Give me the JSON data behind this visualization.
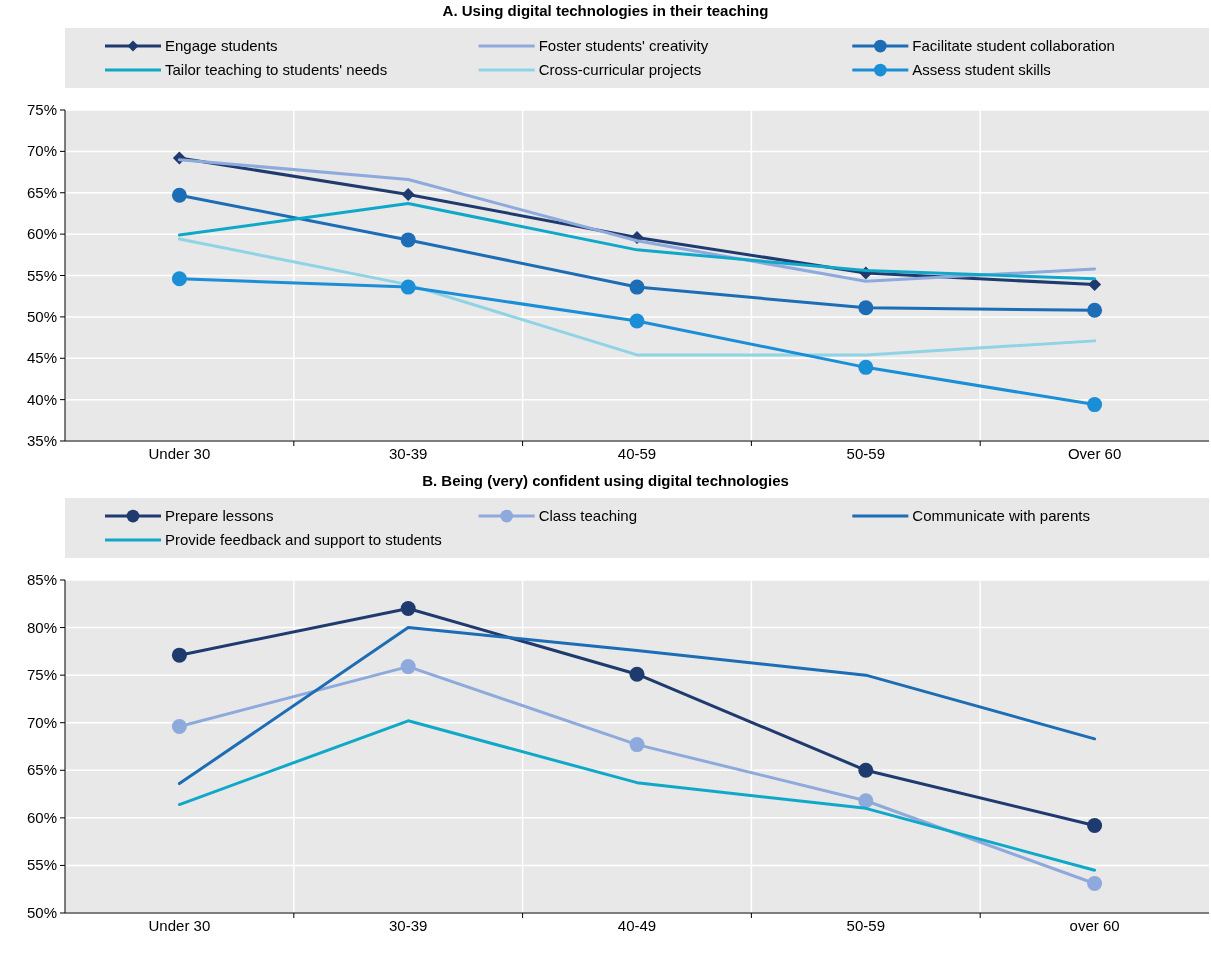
{
  "chart_data": [
    {
      "type": "line",
      "title": "A. Using digital technologies in their teaching",
      "categories": [
        "Under 30",
        "30-39",
        "40-59",
        "50-59",
        "Over 60"
      ],
      "ylim": [
        35,
        75
      ],
      "yticks": [
        {
          "value": 35,
          "label": "35%"
        },
        {
          "value": 40,
          "label": "40%"
        },
        {
          "value": 45,
          "label": "45%"
        },
        {
          "value": 50,
          "label": "50%"
        },
        {
          "value": 55,
          "label": "55%"
        },
        {
          "value": 60,
          "label": "60%"
        },
        {
          "value": 65,
          "label": "65%"
        },
        {
          "value": 70,
          "label": "70%"
        },
        {
          "value": 75,
          "label": "75%"
        }
      ],
      "grid": true,
      "legend": "top",
      "series": [
        {
          "name": "Engage students",
          "color": "#1f3a6e",
          "marker": "diamond",
          "values": [
            69.2,
            64.8,
            59.6,
            55.3,
            53.9
          ]
        },
        {
          "name": "Foster students' creativity",
          "color": "#8eaadc",
          "marker": "none",
          "values": [
            69.0,
            66.6,
            59.2,
            54.3,
            55.8
          ]
        },
        {
          "name": "Facilitate student collaboration",
          "color": "#1c6db5",
          "marker": "circle",
          "values": [
            64.7,
            59.3,
            53.6,
            51.1,
            50.8
          ]
        },
        {
          "name": "Tailor teaching to students' needs",
          "color": "#10a8c8",
          "marker": "none",
          "values": [
            59.9,
            63.7,
            58.1,
            55.6,
            54.6
          ]
        },
        {
          "name": "Cross-curricular projects",
          "color": "#8fd3e4",
          "marker": "none",
          "values": [
            59.4,
            53.9,
            45.4,
            45.4,
            47.1
          ]
        },
        {
          "name": "Assess student skills",
          "color": "#1a8ed6",
          "marker": "circle",
          "values": [
            54.6,
            53.6,
            49.5,
            43.9,
            39.4
          ]
        }
      ]
    },
    {
      "type": "line",
      "title": "B. Being (very) confident using digital technologies",
      "categories": [
        "Under 30",
        "30-39",
        "40-49",
        "50-59",
        "over 60"
      ],
      "ylim": [
        50,
        85
      ],
      "yticks": [
        {
          "value": 50,
          "label": "50%"
        },
        {
          "value": 55,
          "label": "55%"
        },
        {
          "value": 60,
          "label": "60%"
        },
        {
          "value": 65,
          "label": "65%"
        },
        {
          "value": 70,
          "label": "70%"
        },
        {
          "value": 75,
          "label": "75%"
        },
        {
          "value": 80,
          "label": "80%"
        },
        {
          "value": 85,
          "label": "85%"
        }
      ],
      "grid": true,
      "legend": "top",
      "series": [
        {
          "name": "Prepare lessons",
          "color": "#1f3a6e",
          "marker": "circle",
          "values": [
            77.1,
            82.0,
            75.1,
            65.0,
            59.2
          ]
        },
        {
          "name": "Class teaching",
          "color": "#8eaadc",
          "marker": "circle",
          "values": [
            69.6,
            75.9,
            67.7,
            61.8,
            53.1
          ]
        },
        {
          "name": "Communicate with parents",
          "color": "#1c6db5",
          "marker": "none",
          "values": [
            63.6,
            80.0,
            77.6,
            75.0,
            68.3
          ]
        },
        {
          "name": "Provide feedback and support to students",
          "color": "#10a8c8",
          "marker": "none",
          "values": [
            61.4,
            70.2,
            63.7,
            61.0,
            54.5
          ]
        }
      ]
    }
  ]
}
